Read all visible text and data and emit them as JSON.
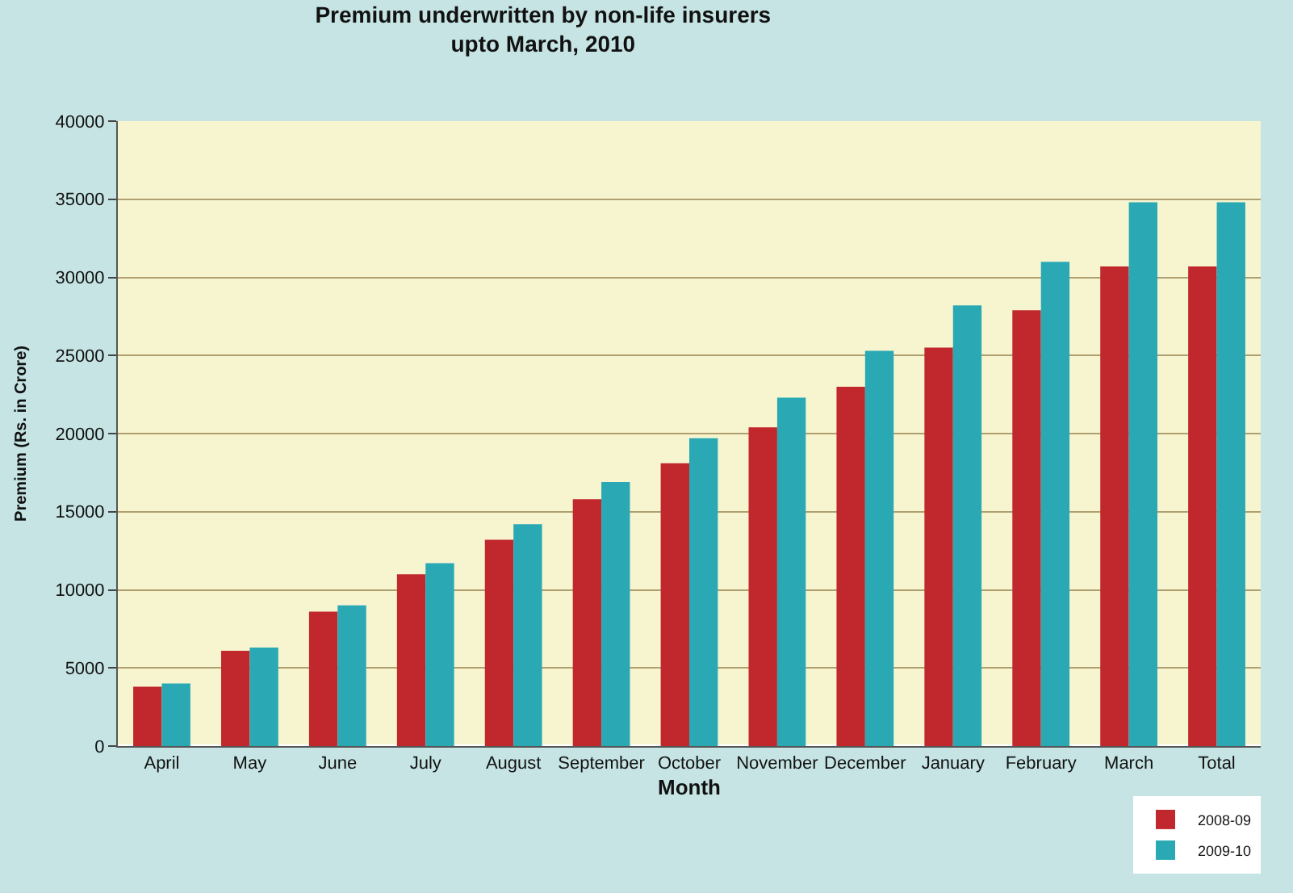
{
  "chart_data": {
    "type": "bar",
    "title": "Premium underwritten by non-life insurers\nupto March, 2010",
    "xlabel": "Month",
    "ylabel": "Premium (Rs. in Crore)",
    "categories": [
      "April",
      "May",
      "June",
      "July",
      "August",
      "September",
      "October",
      "November",
      "December",
      "January",
      "February",
      "March",
      "Total"
    ],
    "series": [
      {
        "name": "2008-09",
        "color": "#c0282d",
        "values": [
          3800,
          6100,
          8600,
          11000,
          13200,
          15800,
          18100,
          20400,
          23000,
          25500,
          27900,
          30700,
          30700
        ]
      },
      {
        "name": "2009-10",
        "color": "#2aa9b5",
        "values": [
          4000,
          6300,
          9000,
          11700,
          14200,
          16900,
          19700,
          22300,
          25300,
          28200,
          31000,
          34800,
          34800
        ]
      }
    ],
    "ylim": [
      0,
      40000
    ],
    "yticks": [
      0,
      5000,
      10000,
      15000,
      20000,
      25000,
      30000,
      35000,
      40000
    ],
    "grid": "y",
    "legend": "bottom right"
  }
}
